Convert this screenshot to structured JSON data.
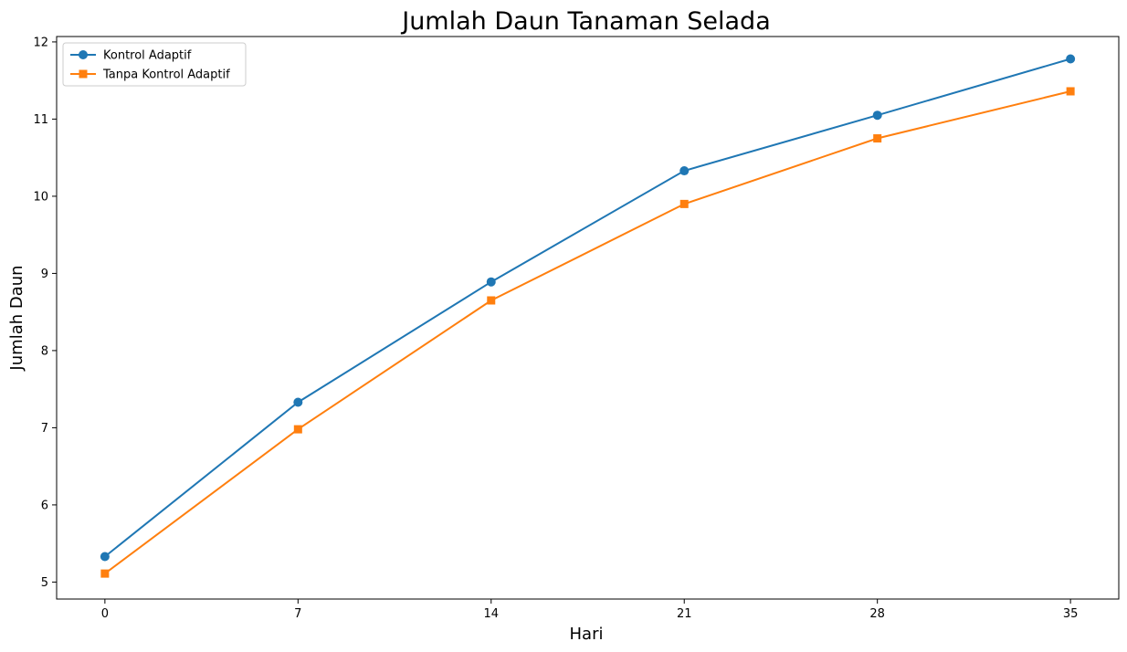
{
  "chart_data": {
    "type": "line",
    "title": "Jumlah Daun Tanaman Selada",
    "xlabel": "Hari",
    "ylabel": "Jumlah Daun",
    "x": [
      0,
      7,
      14,
      21,
      28,
      35
    ],
    "xticks": [
      "0",
      "7",
      "14",
      "21",
      "28",
      "35"
    ],
    "yticks": [
      "5",
      "6",
      "7",
      "8",
      "9",
      "10",
      "11",
      "12"
    ],
    "xlim": [
      -1.75,
      36.75
    ],
    "ylim": [
      4.78,
      12.07
    ],
    "grid": false,
    "legend_position": "top-left",
    "series": [
      {
        "name": "Kontrol Adaptif",
        "color": "#1f77b4",
        "marker": "circle",
        "values": [
          5.33,
          7.33,
          8.89,
          10.33,
          11.05,
          11.78
        ]
      },
      {
        "name": "Tanpa Kontrol Adaptif",
        "color": "#ff7f0e",
        "marker": "square",
        "values": [
          5.11,
          6.98,
          8.65,
          9.9,
          10.75,
          11.36
        ]
      }
    ]
  }
}
